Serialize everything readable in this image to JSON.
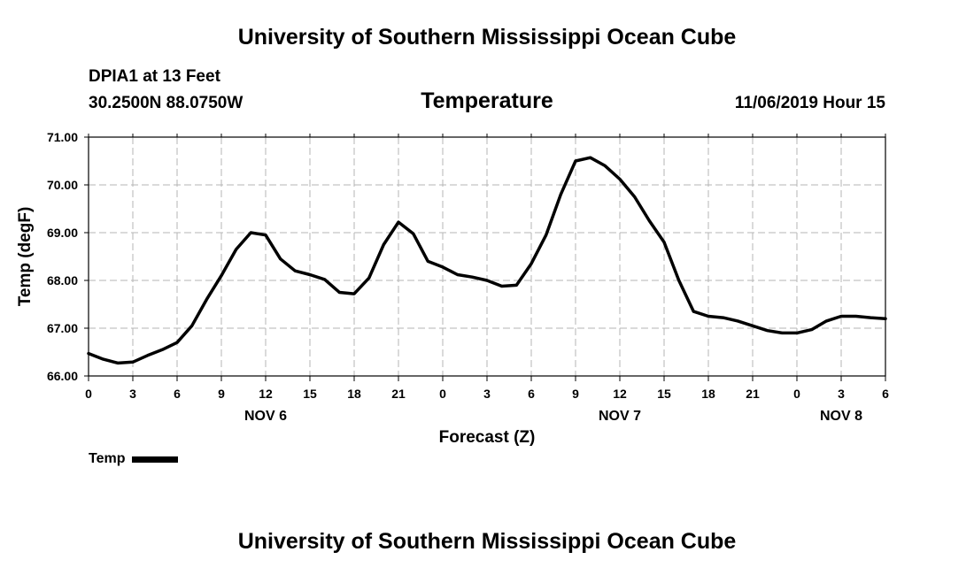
{
  "header": {
    "title": "University of Southern Mississippi Ocean Cube",
    "station": "DPIA1 at 13 Feet",
    "coords": "30.2500N 88.0750W",
    "chart_title": "Temperature",
    "run_time": "11/06/2019 Hour 15"
  },
  "footer": {
    "title": "University of Southern Mississippi Ocean Cube"
  },
  "legend": {
    "label": "Temp"
  },
  "chart_data": {
    "type": "line",
    "title": "Temperature",
    "xlabel": "Forecast (Z)",
    "ylabel": "Temp (degF)",
    "ylim": [
      66.0,
      71.0
    ],
    "xlim": [
      0,
      54
    ],
    "yticks": [
      "66.00",
      "67.00",
      "68.00",
      "69.00",
      "70.00",
      "71.00"
    ],
    "xticks": [
      "0",
      "3",
      "6",
      "9",
      "12",
      "15",
      "18",
      "21",
      "0",
      "3",
      "6",
      "9",
      "12",
      "15",
      "18",
      "21",
      "0",
      "3",
      "6"
    ],
    "day_labels": [
      {
        "label": "NOV 6",
        "hour": 12
      },
      {
        "label": "NOV 7",
        "hour": 36
      },
      {
        "label": "NOV 8",
        "hour": 51
      }
    ],
    "grid": true,
    "series": [
      {
        "name": "Temp",
        "x": [
          0,
          1,
          2,
          3,
          4,
          5,
          6,
          7,
          8,
          9,
          10,
          11,
          12,
          13,
          14,
          15,
          16,
          17,
          18,
          19,
          20,
          21,
          22,
          23,
          24,
          25,
          26,
          27,
          28,
          29,
          30,
          31,
          32,
          33,
          34,
          35,
          36,
          37,
          38,
          39,
          40,
          41,
          42,
          43,
          44,
          45,
          46,
          47,
          48,
          49,
          50,
          51,
          52,
          53,
          54
        ],
        "y": [
          66.47,
          66.35,
          66.27,
          66.29,
          66.43,
          66.55,
          66.7,
          67.05,
          67.6,
          68.1,
          68.65,
          69.0,
          68.95,
          68.45,
          68.2,
          68.12,
          68.02,
          67.75,
          67.72,
          68.05,
          68.75,
          69.22,
          68.98,
          68.4,
          68.28,
          68.12,
          68.07,
          68.0,
          67.88,
          67.9,
          68.35,
          68.95,
          69.8,
          70.5,
          70.57,
          70.4,
          70.12,
          69.75,
          69.25,
          68.8,
          68.0,
          67.35,
          67.25,
          67.22,
          67.15,
          67.05,
          66.95,
          66.9,
          66.9,
          66.97,
          67.15,
          67.25,
          67.25,
          67.22,
          67.2
        ]
      }
    ]
  }
}
